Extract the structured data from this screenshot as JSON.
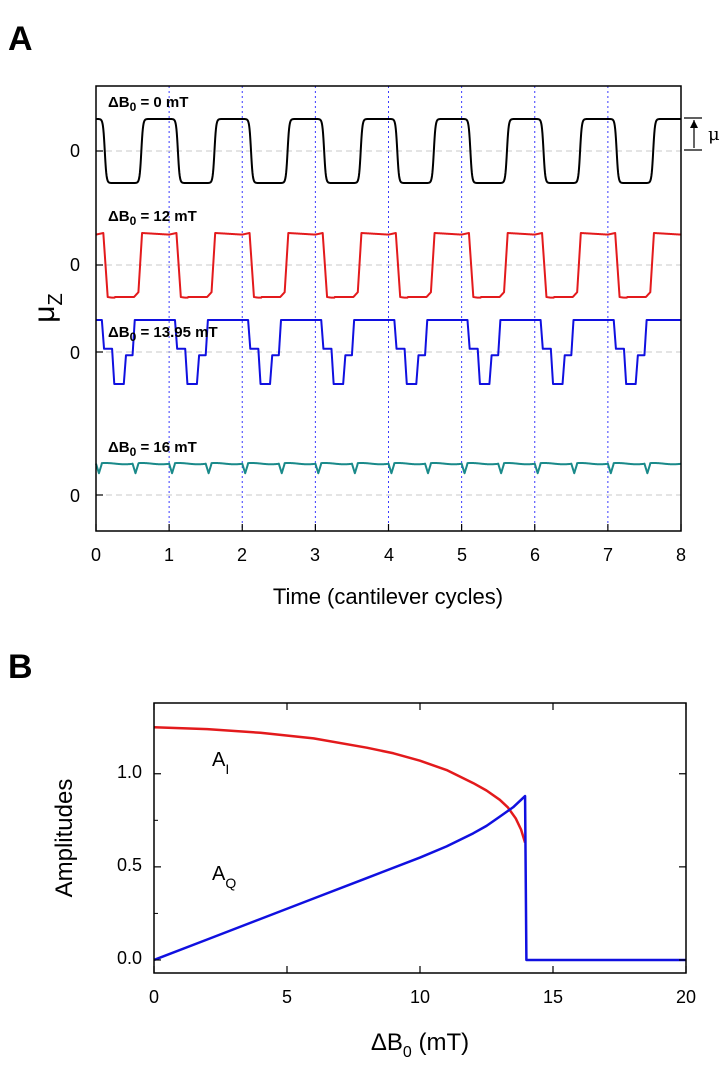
{
  "panels": [
    {
      "letter": "A"
    },
    {
      "letter": "B"
    }
  ],
  "chart_data": [
    {
      "type": "line",
      "panel": "A",
      "xlabel": "Time (cantilever cycles)",
      "ylabel": "μ",
      "ylabel_sub": "Z",
      "xlim": [
        0,
        8
      ],
      "x_ticks": [
        "0",
        "1",
        "2",
        "3",
        "4",
        "5",
        "6",
        "7",
        "8"
      ],
      "y_zero_label": "0",
      "grid": "dotted blue vertical lines at integer cycles; dashed gray zero line per trace",
      "amplitude_marker": "μ",
      "traces": [
        {
          "label_pre": "ΔB",
          "label_sub": "0",
          "label_post": " = 0 mT",
          "color": "#000000",
          "shape": "square",
          "high": 1.0,
          "low": -1.0
        },
        {
          "label_pre": "ΔB",
          "label_sub": "0",
          "label_post": " = 12 mT",
          "color": "#e31a1c",
          "shape": "skewed-square",
          "high": 1.0,
          "low": -1.0
        },
        {
          "label_pre": "ΔB",
          "label_sub": "0",
          "label_post": " = 13.95 mT",
          "color": "#1010e0",
          "shape": "stepped",
          "high": 1.0,
          "low": -1.0
        },
        {
          "label_pre": "ΔB",
          "label_sub": "0",
          "label_post": " = 16 mT",
          "color": "#1a8a8a",
          "shape": "small-ripple",
          "high": 1.0,
          "low": 0.7
        }
      ]
    },
    {
      "type": "line",
      "panel": "B",
      "xlabel_pre": "ΔB",
      "xlabel_sub": "0",
      "xlabel_post": " (mT)",
      "ylabel": "Amplitudes",
      "xlim": [
        0,
        20
      ],
      "ylim": [
        -0.07,
        1.38
      ],
      "x_ticks": [
        0,
        5,
        10,
        15,
        20
      ],
      "y_ticks": [
        "0.0",
        "0.5",
        "1.0"
      ],
      "series": [
        {
          "name": "A",
          "name_sub": "I",
          "color": "#e31a1c",
          "x": [
            0,
            2,
            4,
            6,
            8,
            9,
            10,
            11,
            12,
            12.5,
            13,
            13.3,
            13.6,
            13.8,
            13.95
          ],
          "y": [
            1.25,
            1.24,
            1.22,
            1.19,
            1.14,
            1.11,
            1.07,
            1.02,
            0.95,
            0.91,
            0.86,
            0.82,
            0.76,
            0.7,
            0.63
          ]
        },
        {
          "name": "A",
          "name_sub": "Q",
          "color": "#1010e0",
          "x": [
            0,
            2,
            4,
            6,
            8,
            10,
            11,
            12,
            12.5,
            13,
            13.5,
            13.8,
            13.95,
            14.0,
            14.05,
            20
          ],
          "y": [
            0.0,
            0.11,
            0.22,
            0.33,
            0.44,
            0.55,
            0.61,
            0.68,
            0.72,
            0.77,
            0.82,
            0.86,
            0.88,
            0.0,
            0.0,
            0.0
          ]
        }
      ]
    }
  ]
}
